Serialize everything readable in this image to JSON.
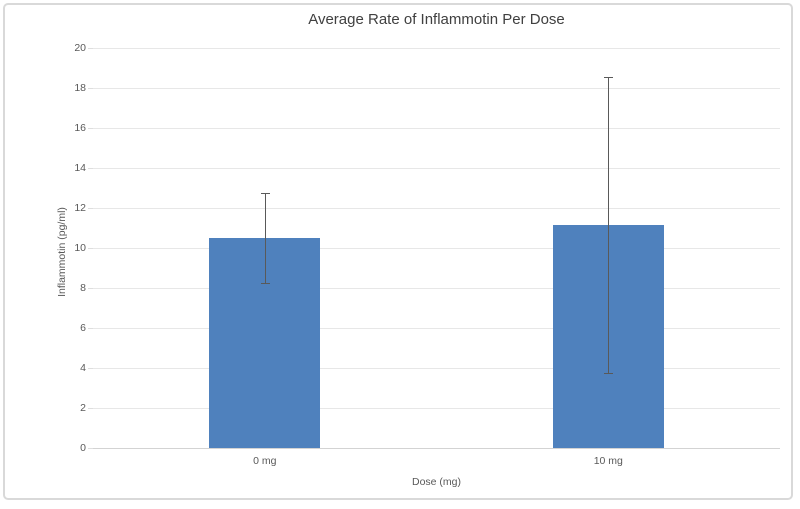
{
  "chart_data": {
    "type": "bar",
    "title": "Average Rate of Inflammotin Per Dose",
    "xlabel": "Dose (mg)",
    "ylabel": "Inflammotin (pg/ml)",
    "categories": [
      "0 mg",
      "10 mg"
    ],
    "values": [
      10.5,
      11.15
    ],
    "error_plus": [
      2.25,
      7.4
    ],
    "error_minus": [
      2.25,
      7.4
    ],
    "ylim": [
      0,
      20
    ],
    "ytick_step": 2,
    "ytick_labels": [
      "0",
      "2",
      "4",
      "6",
      "8",
      "10",
      "12",
      "14",
      "16",
      "18",
      "20"
    ],
    "grid": true,
    "legend": false,
    "bar_color": "#4f81bd"
  },
  "colors": {
    "bar": "#4f81bd",
    "gridline": "#e7e7e7",
    "axis_line": "#d3d3d3",
    "error_bar": "#595959",
    "tick_text": "#595959",
    "title_text": "#404040",
    "frame_border": "#d9d9d9",
    "background": "#ffffff"
  }
}
